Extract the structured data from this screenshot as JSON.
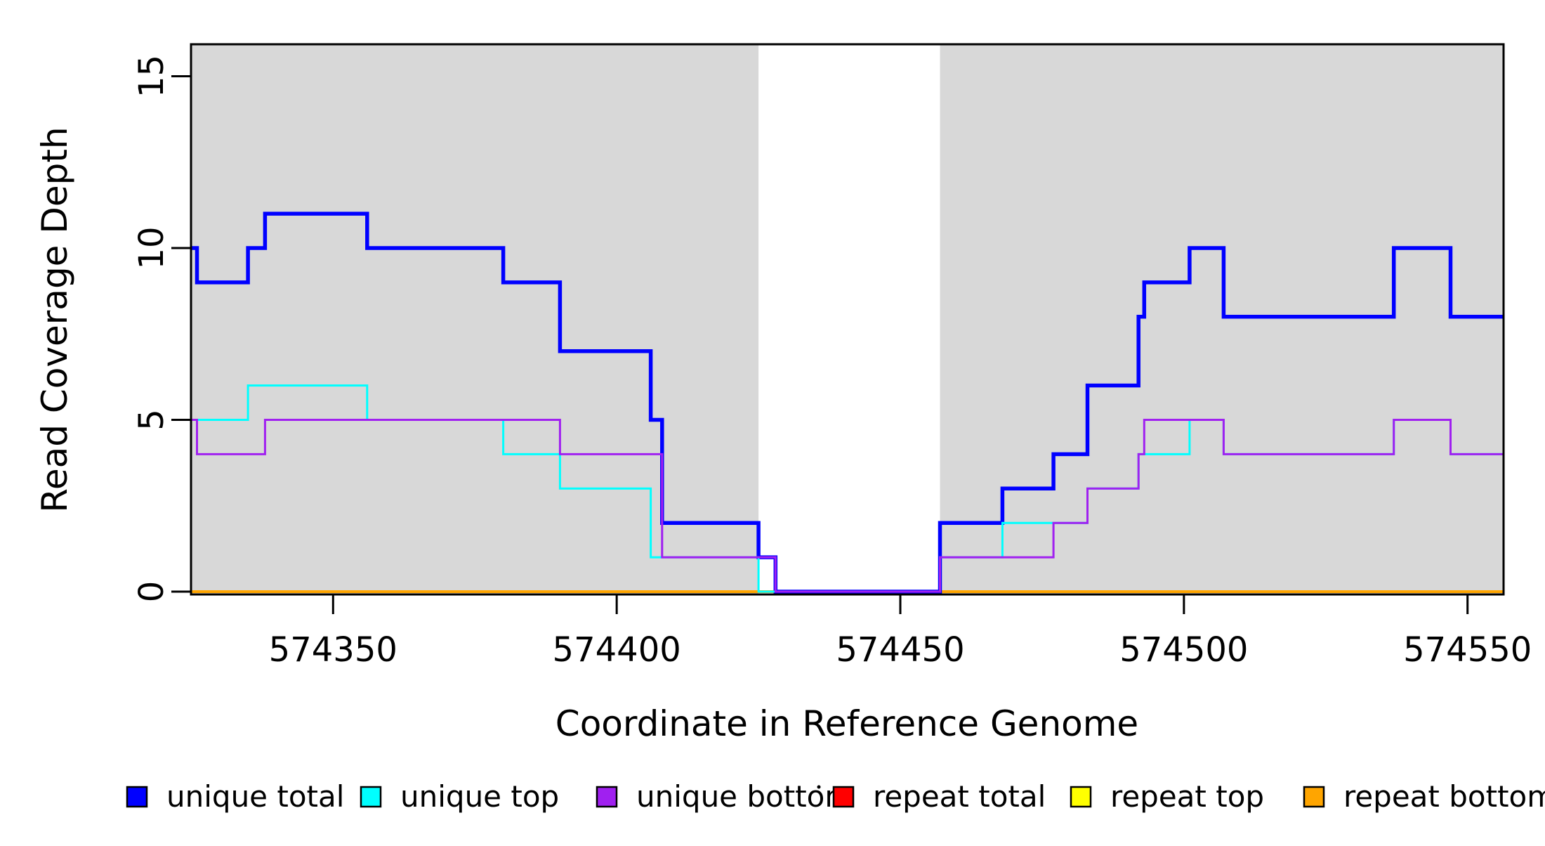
{
  "figure": {
    "background": "#FFFFFF",
    "band_color": "#D8D8D8",
    "axis_color": "#000000"
  },
  "chart_data": {
    "type": "line",
    "subtype": "step",
    "title": "",
    "xlabel": "Coordinate in Reference Genome",
    "ylabel": "Read Coverage Depth",
    "xlim": [
      574325,
      574557
    ],
    "ylim": [
      0,
      16
    ],
    "x_ticks": [
      574350,
      574400,
      574450,
      574500,
      574550
    ],
    "x_tick_labels": [
      "574350",
      "574400",
      "574450",
      "574500",
      "574550"
    ],
    "y_ticks": [
      0,
      5,
      10,
      15
    ],
    "y_tick_labels": [
      "0",
      "5",
      "10",
      "15"
    ],
    "grid": false,
    "shaded_regions": [
      {
        "x0": 574325,
        "x1": 574425,
        "color": "#D8D8D8"
      },
      {
        "x0": 574457,
        "x1": 574557,
        "color": "#D8D8D8"
      }
    ],
    "series": [
      {
        "name": "repeat total",
        "color": "#FF0000",
        "width": 3.5,
        "x_end": 574557,
        "points": [
          [
            574325,
            0
          ]
        ]
      },
      {
        "name": "repeat top",
        "color": "#FFFF00",
        "width": 3.5,
        "x_end": 574557,
        "points": [
          [
            574325,
            0
          ]
        ]
      },
      {
        "name": "repeat bottom",
        "color": "#FFA500",
        "width": 4,
        "x_end": 574557,
        "points": [
          [
            574325,
            0
          ]
        ]
      },
      {
        "name": "unique total",
        "color": "#0000FF",
        "width": 5.5,
        "x_end": 574557,
        "points": [
          [
            574325,
            10
          ],
          [
            574326,
            9
          ],
          [
            574335,
            10
          ],
          [
            574338,
            11
          ],
          [
            574356,
            10
          ],
          [
            574380,
            9
          ],
          [
            574390,
            7
          ],
          [
            574406,
            5
          ],
          [
            574408,
            2
          ],
          [
            574425,
            1
          ],
          [
            574428,
            0
          ],
          [
            574457,
            2
          ],
          [
            574468,
            3
          ],
          [
            574477,
            4
          ],
          [
            574483,
            6
          ],
          [
            574492,
            8
          ],
          [
            574493,
            9
          ],
          [
            574501,
            10
          ],
          [
            574507,
            8
          ],
          [
            574537,
            10
          ],
          [
            574547,
            8
          ]
        ]
      },
      {
        "name": "unique top",
        "color": "#00FFFF",
        "width": 3,
        "x_end": 574557,
        "points": [
          [
            574325,
            5
          ],
          [
            574335,
            6
          ],
          [
            574356,
            5
          ],
          [
            574380,
            4
          ],
          [
            574390,
            3
          ],
          [
            574406,
            1
          ],
          [
            574425,
            0
          ],
          [
            574457,
            1
          ],
          [
            574468,
            2
          ],
          [
            574483,
            3
          ],
          [
            574492,
            4
          ],
          [
            574501,
            5
          ],
          [
            574507,
            4
          ],
          [
            574537,
            5
          ],
          [
            574547,
            4
          ]
        ]
      },
      {
        "name": "unique bottom",
        "color": "#A020F0",
        "width": 3,
        "x_end": 574557,
        "points": [
          [
            574325,
            5
          ],
          [
            574326,
            4
          ],
          [
            574338,
            5
          ],
          [
            574390,
            4
          ],
          [
            574408,
            1
          ],
          [
            574428,
            0
          ],
          [
            574457,
            1
          ],
          [
            574477,
            2
          ],
          [
            574483,
            3
          ],
          [
            574492,
            4
          ],
          [
            574493,
            5
          ],
          [
            574507,
            4
          ],
          [
            574537,
            5
          ],
          [
            574547,
            4
          ]
        ]
      }
    ],
    "legend": {
      "position": "bottom",
      "entries": [
        {
          "label": "unique total",
          "color": "#0000FF"
        },
        {
          "label": "unique top",
          "color": "#00FFFF"
        },
        {
          "label": "unique bottom",
          "color": "#A020F0"
        },
        {
          "label": "repeat total",
          "color": "#FF0000"
        },
        {
          "label": "repeat top",
          "color": "#FFFF00"
        },
        {
          "label": "repeat bottom",
          "color": "#FFA500"
        }
      ]
    }
  }
}
